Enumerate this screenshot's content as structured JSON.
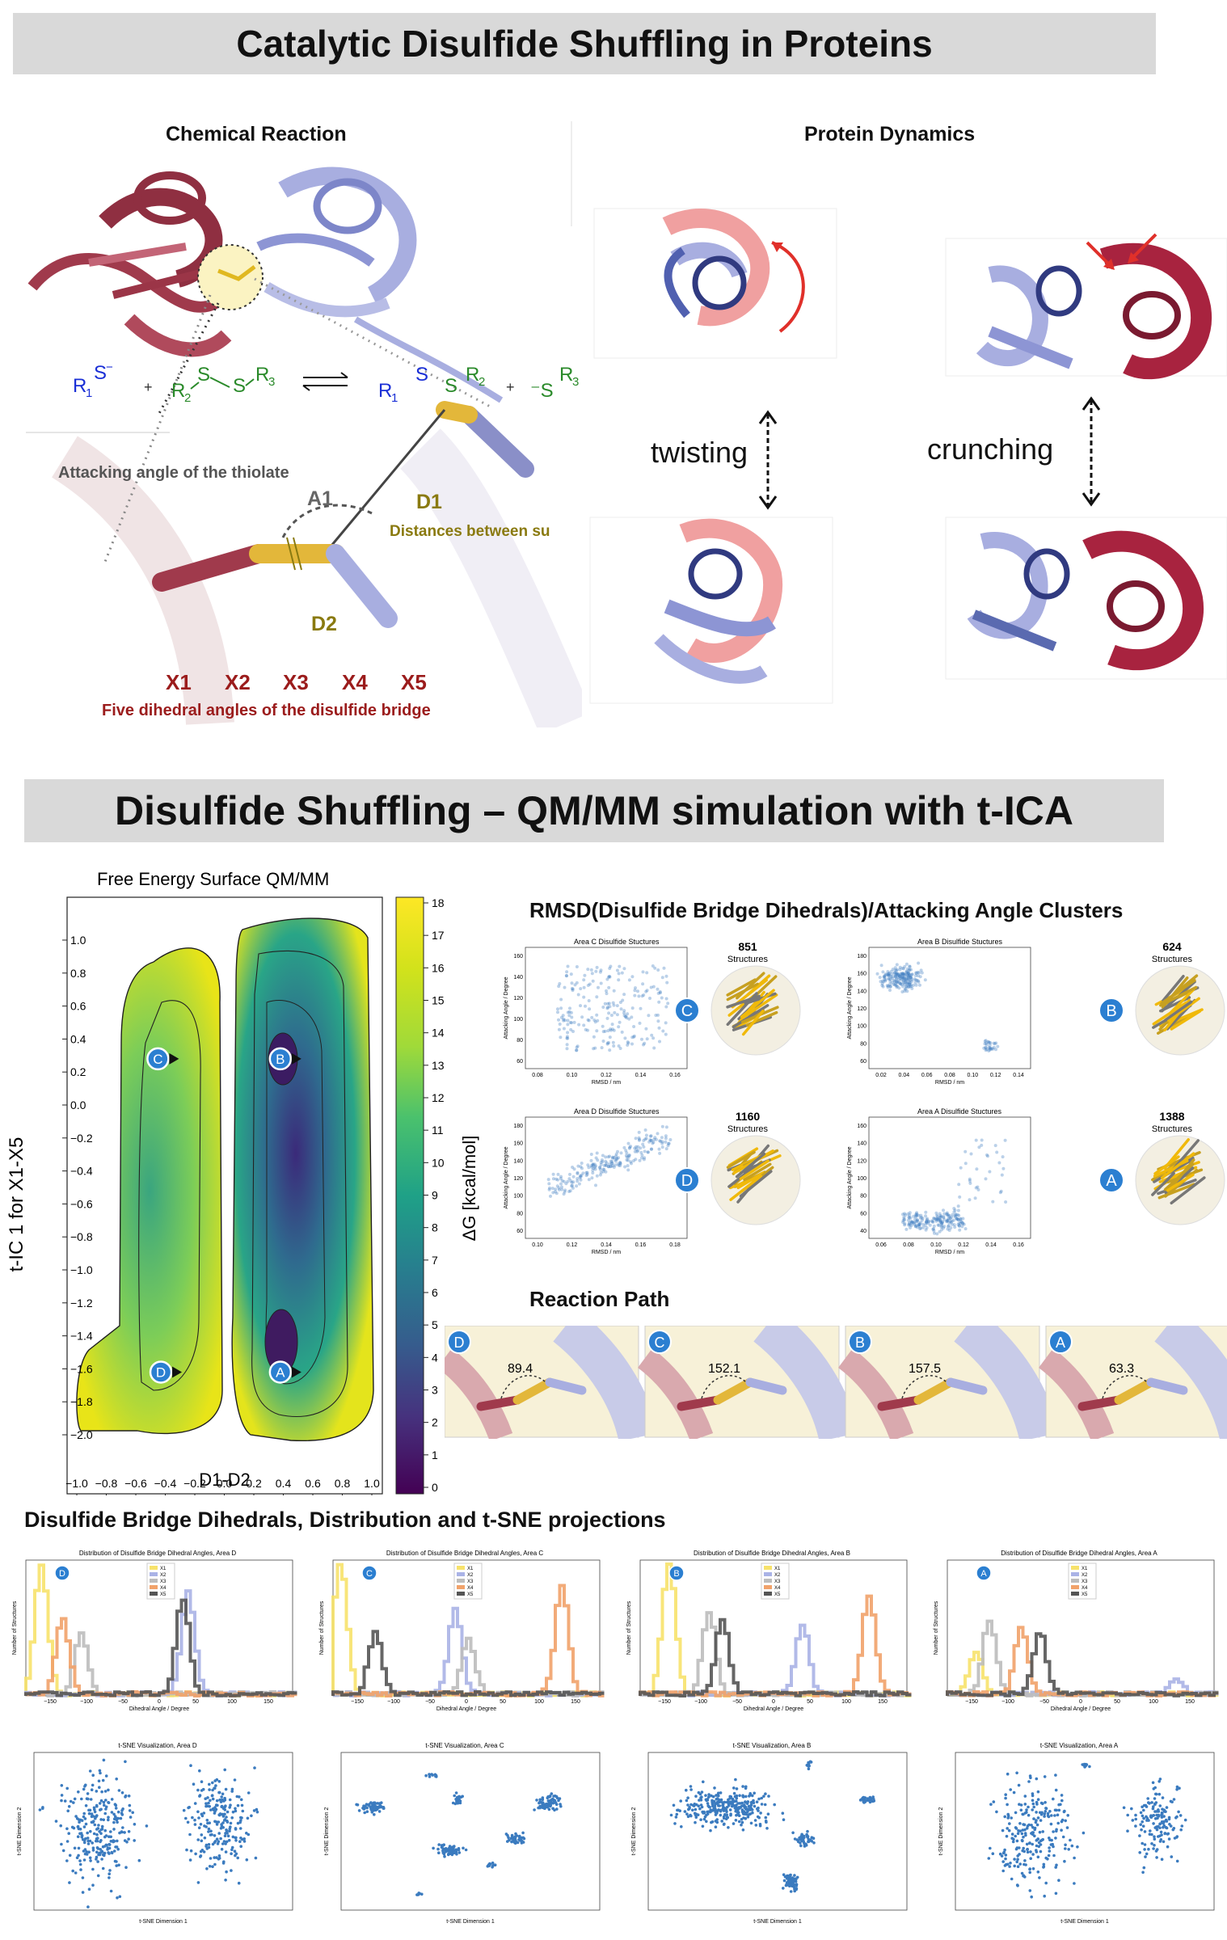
{
  "banners": {
    "top": "Catalytic Disulfide Shuffling in Proteins",
    "middle": "Disulfide Shuffling – QM/MM simulation with t-ICA"
  },
  "chemical": {
    "heading": "Chemical Reaction",
    "reaction": {
      "r1_thiolate": "R₁S⁻",
      "plus": "+",
      "disulfide_left": "R₂–S–S–R₃",
      "arrows": "⇌",
      "product_disulfide": "R₁–S–S–R₂",
      "product_thiolate": "⁻S–R₃"
    },
    "attacking_label": "Attacking angle of the thiolate",
    "a1": "A1",
    "d1": "D1",
    "d1_desc": "Distances between su",
    "d2": "D2",
    "dihedrals": [
      "X1",
      "X2",
      "X3",
      "X4",
      "X5"
    ],
    "dihedral_desc": "Five dihedral angles of the disulfide bridge"
  },
  "dynamics": {
    "heading": "Protein Dynamics",
    "twisting": "twisting",
    "crunching": "crunching"
  },
  "fes": {
    "title": "Free Energy Surface QM/MM",
    "xlabel": "D1-D2",
    "ylabel": "t-IC 1  for X1-X5",
    "cbar_label": "ΔG [kcal/mol]",
    "xticks": [
      "−1.0",
      "−0.8",
      "−0.6",
      "−0.4",
      "−0.2",
      "0.0",
      "0.2",
      "0.4",
      "0.6",
      "0.8",
      "1.0"
    ],
    "yticks": [
      "1.0",
      "0.8",
      "0.6",
      "0.4",
      "0.2",
      "0.0",
      "−0.2",
      "−0.4",
      "−0.6",
      "−0.8",
      "−1.0",
      "−1.2",
      "−1.4",
      "−1.6",
      "−1.8",
      "−2.0"
    ],
    "cbar_ticks": [
      "18",
      "17",
      "16",
      "15",
      "14",
      "13",
      "12",
      "11",
      "10",
      "9",
      "8",
      "7",
      "6",
      "5",
      "4",
      "3",
      "2",
      "1",
      "0"
    ],
    "markers": [
      {
        "label": "C",
        "x": -0.45,
        "y": 0.28
      },
      {
        "label": "B",
        "x": 0.38,
        "y": 0.28
      },
      {
        "label": "D",
        "x": -0.43,
        "y": -1.62
      },
      {
        "label": "A",
        "x": 0.38,
        "y": -1.62
      }
    ]
  },
  "clusters": {
    "heading": "RMSD(Disulfide Bridge Dihedrals)/Attacking Angle Clusters",
    "structures_word": "Structures",
    "panels": [
      {
        "title": "Area C Disulfide Stuctures",
        "count": "851",
        "label": "C",
        "xticks": [
          "0.08",
          "0.10",
          "0.12",
          "0.14",
          "0.16"
        ],
        "yticks": [
          "60",
          "80",
          "100",
          "120",
          "140",
          "160"
        ]
      },
      {
        "title": "Area B Disulfide Stuctures",
        "count": "624",
        "label": "B",
        "xticks": [
          "0.02",
          "0.04",
          "0.06",
          "0.08",
          "0.10",
          "0.12",
          "0.14"
        ],
        "yticks": [
          "60",
          "80",
          "100",
          "120",
          "140",
          "160",
          "180"
        ]
      },
      {
        "title": "Area D Disulfide Stuctures",
        "count": "1160",
        "label": "D",
        "xticks": [
          "0.10",
          "0.12",
          "0.14",
          "0.16",
          "0.18"
        ],
        "yticks": [
          "60",
          "80",
          "100",
          "120",
          "140",
          "160",
          "180"
        ]
      },
      {
        "title": "Area A Disulfide Stuctures",
        "count": "1388",
        "label": "A",
        "xticks": [
          "0.06",
          "0.08",
          "0.10",
          "0.12",
          "0.14",
          "0.16"
        ],
        "yticks": [
          "40",
          "60",
          "80",
          "100",
          "120",
          "140",
          "160"
        ]
      }
    ],
    "xlabel": "RMSD / nm",
    "ylabel": "Attacking Angle / Degree"
  },
  "reaction_path": {
    "heading": "Reaction Path",
    "steps": [
      {
        "label": "D",
        "value": "89.4"
      },
      {
        "label": "C",
        "value": "152.1"
      },
      {
        "label": "B",
        "value": "157.5"
      },
      {
        "label": "A",
        "value": "63.3"
      }
    ]
  },
  "dihedrals_section": {
    "heading": "Disulfide Bridge Dihedrals, Distribution and t-SNE projections",
    "hist_titles": [
      "Distribution of Disulfide Bridge Dihedral Angles, Area D",
      "Distribution of Disulfide Bridge Dihedral Angles, Area C",
      "Distribution of Disulfide Bridge Dihedral Angles, Area B",
      "Distribution of Disulfide Bridge Dihedral Angles, Area A"
    ],
    "hist_labels": [
      "D",
      "C",
      "B",
      "A"
    ],
    "hist_xlabel": "Dihedral Angle / Degree",
    "hist_ylabel": "Number of Structures",
    "hist_xticks": [
      "−150",
      "−100",
      "−50",
      "0",
      "50",
      "100",
      "150"
    ],
    "legend": [
      "X1",
      "X2",
      "X3",
      "X4",
      "X5"
    ],
    "tsne_titles": [
      "t-SNE Visualization, Area D",
      "t-SNE Visualization, Area C",
      "t-SNE Visualization, Area B",
      "t-SNE Visualization, Area A"
    ],
    "tsne_xlabel": "t-SNE Dimension 1",
    "tsne_ylabel": "t-SNE Dimension 2"
  },
  "colors": {
    "banner_bg": "#d9d9d9",
    "maroon": "#a03a4c",
    "lavender": "#a8aee0",
    "label_blue": "#1d6fc4",
    "dark_red": "#9b1c1c",
    "olive": "#8a7a10",
    "scatter_blue": "#3b7bbf"
  }
}
